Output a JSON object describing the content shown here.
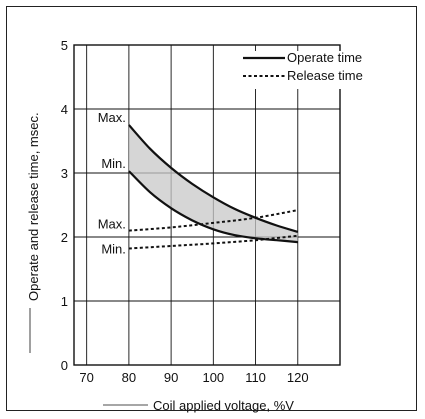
{
  "chart_data": {
    "type": "line",
    "xlabel": "Coil applied voltage, %V",
    "ylabel": "Operate and release time, msec.",
    "xlim": [
      67,
      130
    ],
    "ylim": [
      0,
      5
    ],
    "x_ticks": [
      70,
      80,
      90,
      100,
      110,
      120
    ],
    "y_ticks": [
      0,
      1,
      2,
      3,
      4,
      5
    ],
    "grid": true,
    "legend_position": "top-right",
    "series": [
      {
        "name": "Operate time",
        "style": "solid",
        "bands": [
          {
            "label": "Max.",
            "x": [
              80,
              85,
              90,
              95,
              100,
              105,
              110,
              115,
              120
            ],
            "y": [
              3.75,
              3.38,
              3.08,
              2.83,
              2.62,
              2.44,
              2.3,
              2.18,
              2.08
            ]
          },
          {
            "label": "Min.",
            "x": [
              80,
              85,
              90,
              95,
              100,
              105,
              110,
              115,
              120
            ],
            "y": [
              3.03,
              2.7,
              2.45,
              2.26,
              2.12,
              2.03,
              1.98,
              1.95,
              1.92
            ]
          }
        ]
      },
      {
        "name": "Release time",
        "style": "dotted",
        "bands": [
          {
            "label": "Max.",
            "x": [
              80,
              90,
              100,
              110,
              120
            ],
            "y": [
              2.1,
              2.15,
              2.22,
              2.3,
              2.42
            ]
          },
          {
            "label": "Min.",
            "x": [
              80,
              90,
              100,
              110,
              120
            ],
            "y": [
              1.82,
              1.86,
              1.9,
              1.95,
              2.02
            ]
          }
        ]
      }
    ]
  },
  "colors": {
    "line": "#111111",
    "shade": "#c8c8c8"
  }
}
